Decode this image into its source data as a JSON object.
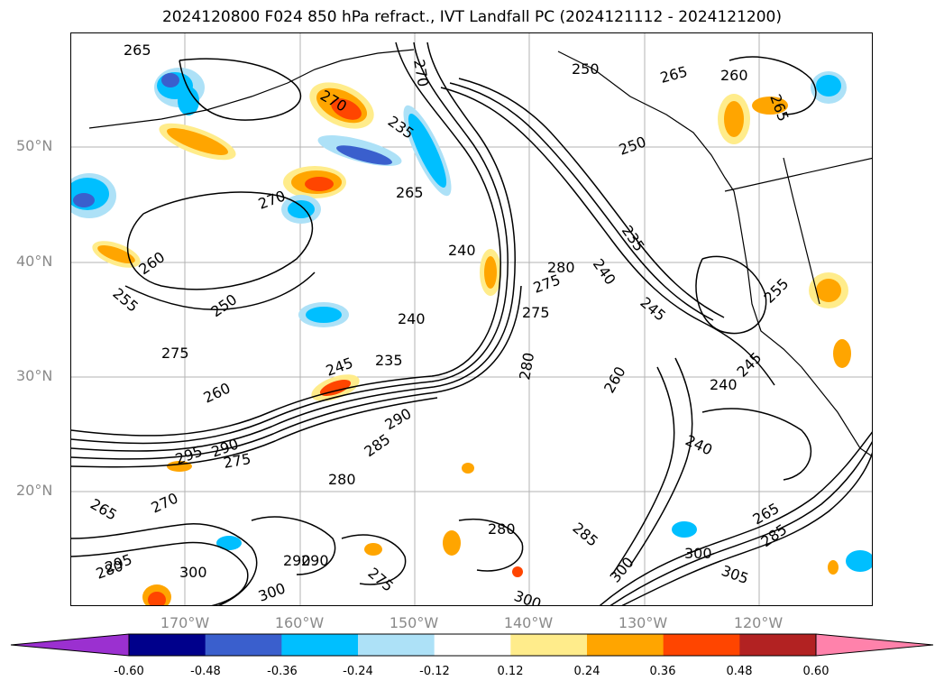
{
  "title": "2024120800 F024 850 hPa refract., IVT Landfall PC (2024121112 - 2024121200)",
  "lat_labels": [
    "50°N",
    "40°N",
    "30°N",
    "20°N"
  ],
  "lon_labels": [
    "170°W",
    "160°W",
    "150°W",
    "140°W",
    "130°W",
    "120°W"
  ],
  "contour_labels": [
    "265",
    "270",
    "270",
    "260",
    "265",
    "265",
    "250",
    "270",
    "265",
    "260",
    "255",
    "250",
    "245",
    "240",
    "235",
    "235",
    "240",
    "275",
    "245",
    "260",
    "280",
    "280",
    "275",
    "260",
    "240",
    "240",
    "295",
    "290",
    "275",
    "290",
    "285",
    "280",
    "265",
    "270",
    "285",
    "300",
    "295",
    "280",
    "290",
    "300",
    "300",
    "290",
    "275",
    "280",
    "265",
    "285",
    "300",
    "300",
    "305",
    "235",
    "240",
    "245",
    "255",
    "275",
    "250"
  ],
  "colorbar": {
    "ticks": [
      "-0.60",
      "-0.48",
      "-0.36",
      "-0.24",
      "-0.12",
      "0.12",
      "0.24",
      "0.36",
      "0.48",
      "0.60"
    ],
    "colors": [
      "#9b30d0",
      "#00008b",
      "#3a5fcd",
      "#00bfff",
      "#ade1f7",
      "#ffffff",
      "#ffec8b",
      "#ffa500",
      "#ff4500",
      "#b22222",
      "#ff82ab"
    ]
  }
}
